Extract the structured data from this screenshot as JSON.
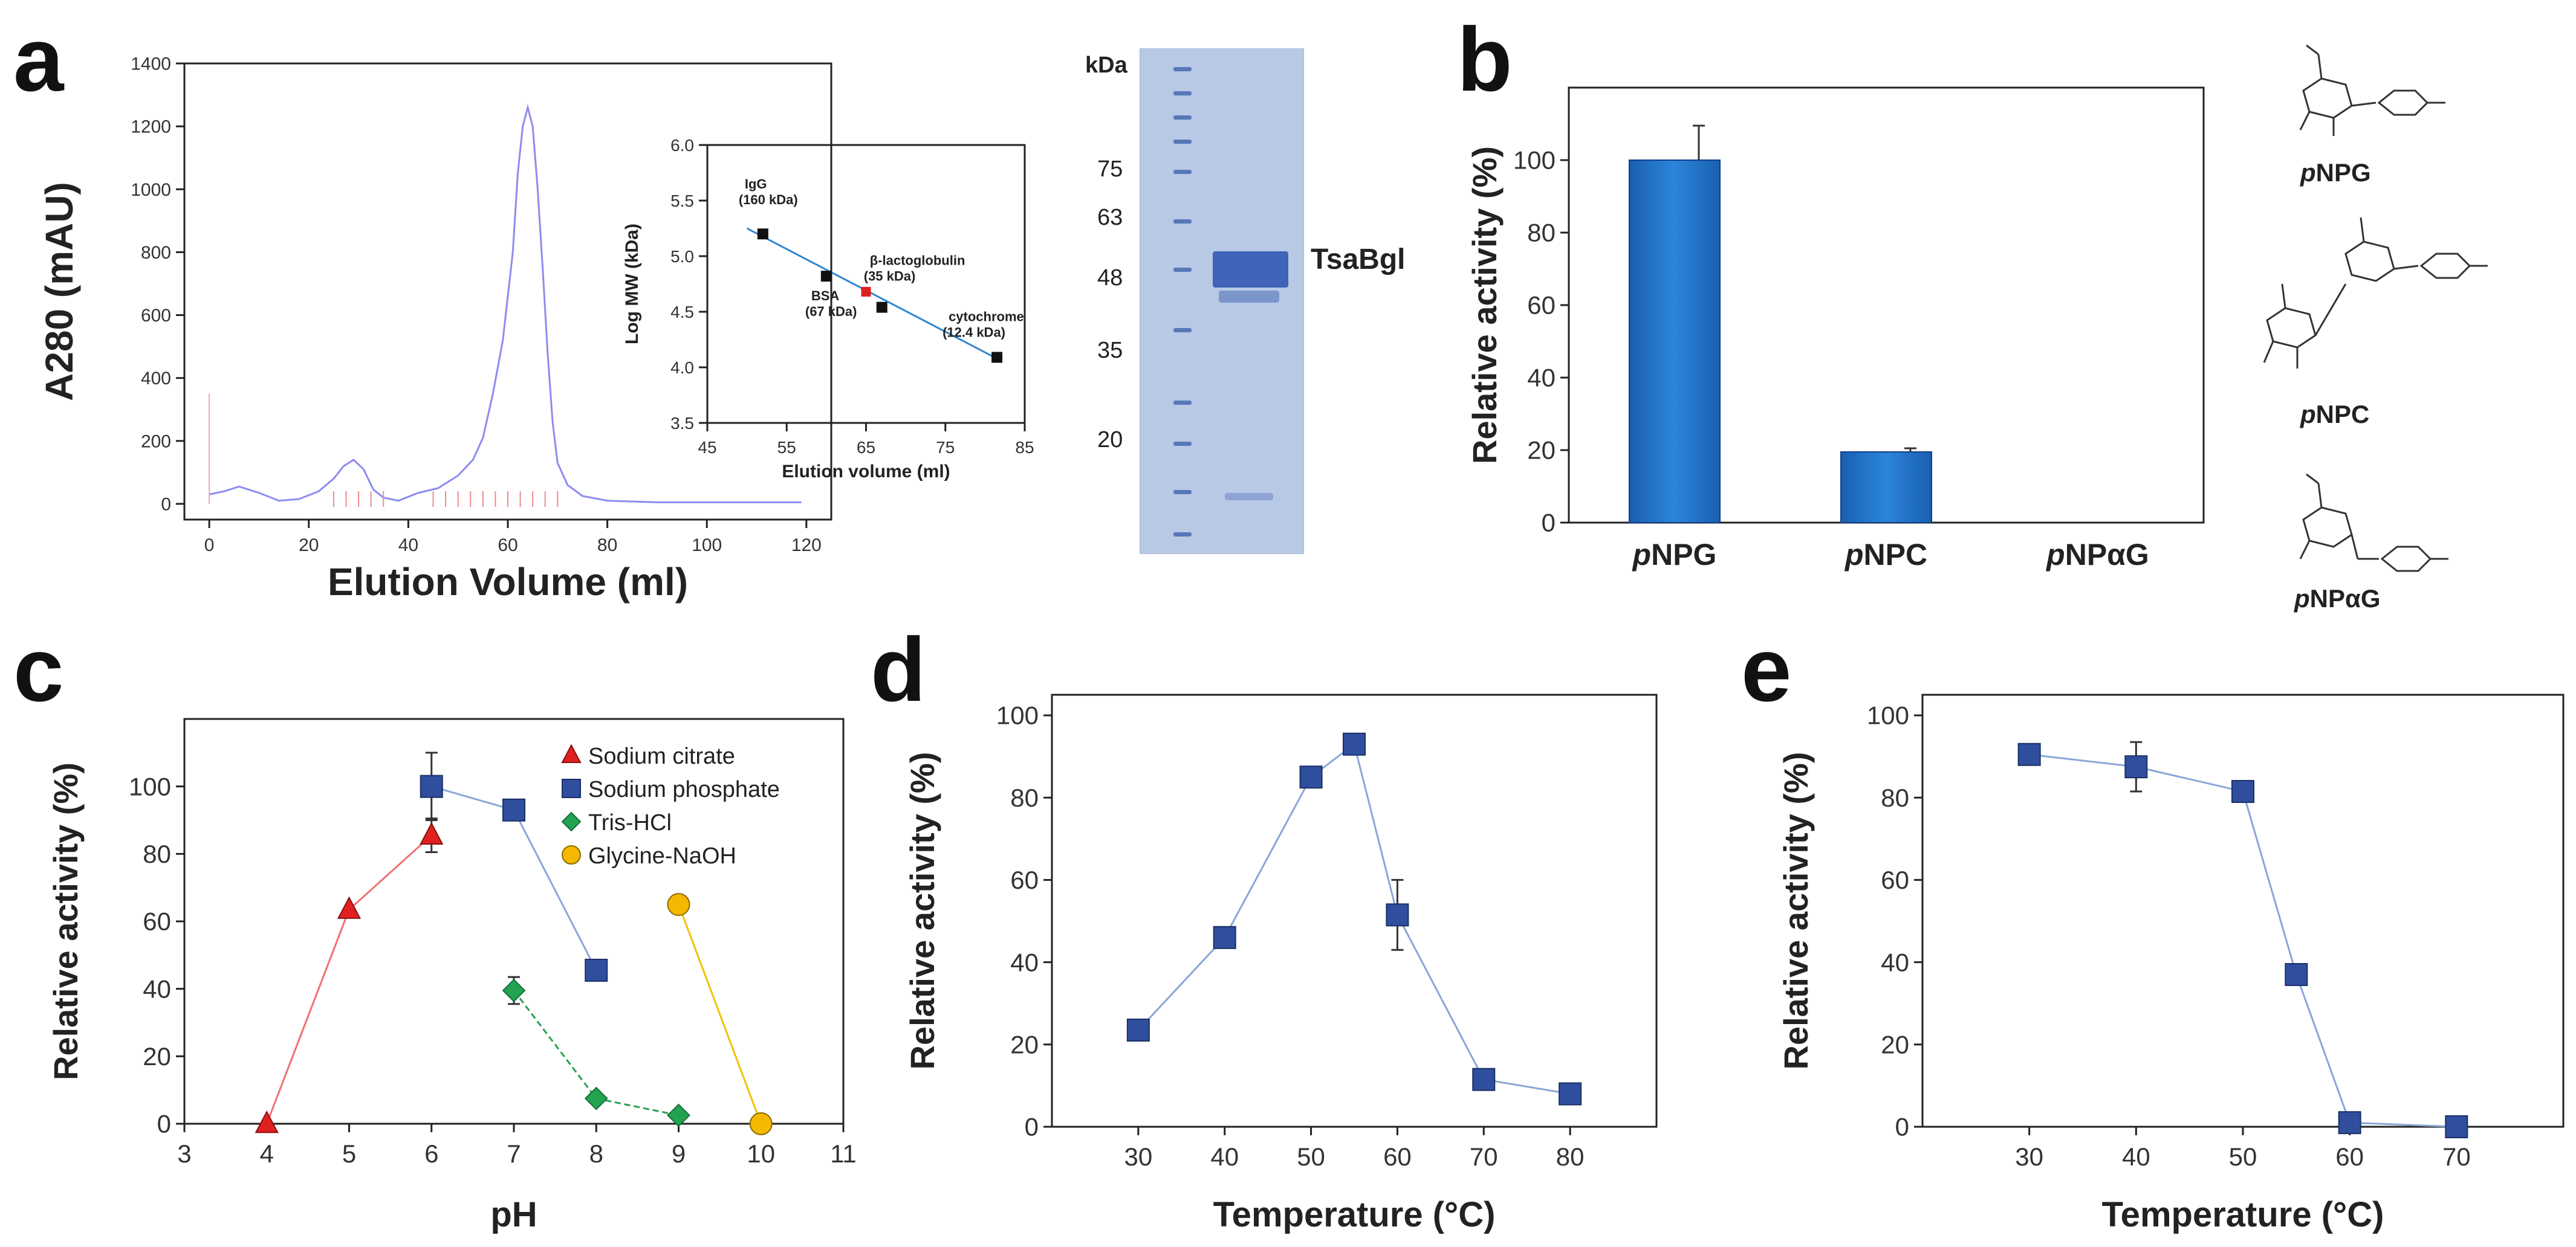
{
  "panel_letters": {
    "a": "a",
    "b": "b",
    "c": "c",
    "d": "d",
    "e": "e"
  },
  "colors": {
    "axis": "#222222",
    "chromatogram": "#8c8cf0",
    "chromatogram_marks": "#f08a8a",
    "bar": "#1f6fc4",
    "bar_edge": "#0f3f8a",
    "series_red": "#e02020",
    "series_blue": "#2f4f9e",
    "series_green": "#23a350",
    "series_orange": "#f5b800",
    "line_blue": "#8aa6d8",
    "inset_line": "#2f86d0",
    "gel_bg": "#b8c9e6",
    "gel_band": "#4f6fb8"
  },
  "gel": {
    "unit_label": "kDa",
    "markers": [
      "75",
      "63",
      "48",
      "35",
      "20"
    ],
    "protein_label": "TsaBgl"
  },
  "structures": [
    {
      "name_prefix": "p",
      "name_rest": "NPG",
      "icon": "glucoside-structure-icon"
    },
    {
      "name_prefix": "p",
      "name_rest": "NPC",
      "icon": "cellobioside-structure-icon"
    },
    {
      "name_prefix": "p",
      "name_rest": "NPαG",
      "icon": "alpha-glucoside-structure-icon"
    }
  ],
  "chart_data": [
    {
      "panel": "a",
      "type": "line",
      "title": "",
      "xlabel": "Elution Volume (ml)",
      "ylabel": "A280 (mAU)",
      "xlim": [
        -5,
        125
      ],
      "ylim": [
        -50,
        1400
      ],
      "xticks": [
        0,
        20,
        40,
        60,
        80,
        100,
        120
      ],
      "yticks": [
        0,
        200,
        400,
        600,
        800,
        1000,
        1200,
        1400
      ],
      "series": [
        {
          "name": "A280",
          "x": [
            0,
            3,
            6,
            10,
            14,
            18,
            22,
            25,
            27,
            29,
            31,
            33,
            35,
            38,
            42,
            46,
            50,
            53,
            55,
            57,
            59,
            61,
            62,
            63,
            64,
            65,
            66,
            67,
            68,
            69,
            70,
            72,
            75,
            80,
            90,
            100,
            110,
            119
          ],
          "y": [
            30,
            40,
            55,
            35,
            10,
            15,
            40,
            80,
            120,
            140,
            110,
            45,
            20,
            10,
            35,
            50,
            90,
            140,
            210,
            350,
            520,
            800,
            1050,
            1200,
            1260,
            1200,
            1000,
            750,
            480,
            260,
            130,
            60,
            25,
            10,
            5,
            5,
            5,
            5
          ]
        }
      ]
    },
    {
      "panel": "a-inset",
      "type": "scatter",
      "title": "",
      "xlabel": "Elution volume (ml)",
      "ylabel": "Log MW (kDa)",
      "xlim": [
        45,
        85
      ],
      "ylim": [
        3.5,
        6.0
      ],
      "xticks": [
        45,
        55,
        65,
        75,
        85
      ],
      "yticks": [
        3.5,
        4.0,
        4.5,
        5.0,
        5.5,
        6.0
      ],
      "standards": [
        {
          "label": "IgG",
          "sublabel": "(160 kDa)",
          "x": 52,
          "y": 5.2
        },
        {
          "label": "BSA",
          "sublabel": "(67 kDa)",
          "x": 60,
          "y": 4.82
        },
        {
          "label": "β-lactoglobulin",
          "sublabel": "(35 kDa)",
          "x": 67,
          "y": 4.54
        },
        {
          "label": "cytochrome",
          "sublabel": "(12.4 kDa)",
          "x": 81.5,
          "y": 4.09
        }
      ],
      "sample": {
        "x": 65,
        "y": 4.68
      },
      "fit": {
        "x": [
          50,
          82
        ],
        "y": [
          5.25,
          4.06
        ]
      }
    },
    {
      "panel": "b",
      "type": "bar",
      "title": "",
      "xlabel": "",
      "ylabel": "Relative activity (%)",
      "ylim": [
        0,
        120
      ],
      "yticks": [
        0,
        20,
        40,
        60,
        80,
        100
      ],
      "categories": [
        {
          "prefix": "p",
          "rest": "NPG"
        },
        {
          "prefix": "p",
          "rest": "NPC"
        },
        {
          "prefix": "p",
          "rest": "NPαG"
        }
      ],
      "values": [
        100,
        19.5,
        0
      ],
      "errors": [
        9.5,
        1.0,
        0
      ]
    },
    {
      "panel": "c",
      "type": "line",
      "title": "",
      "xlabel": "pH",
      "ylabel": "Relative activity (%)",
      "xlim": [
        3,
        11
      ],
      "ylim": [
        0,
        120
      ],
      "xticks": [
        3,
        4,
        5,
        6,
        7,
        8,
        9,
        10,
        11
      ],
      "yticks": [
        0,
        20,
        40,
        60,
        80,
        100
      ],
      "legend_position": "top-right",
      "series": [
        {
          "name": "Sodium citrate",
          "marker": "triangle",
          "color": "#e02020",
          "line": "#f07070",
          "x": [
            4,
            5,
            6
          ],
          "y": [
            0,
            63.5,
            85.5
          ],
          "err": [
            0,
            0,
            5
          ]
        },
        {
          "name": "Sodium phosphate",
          "marker": "square",
          "color": "#2f4f9e",
          "line": "#8aa6d8",
          "x": [
            6,
            7,
            8
          ],
          "y": [
            100,
            93,
            45.5
          ],
          "err": [
            10,
            0,
            0
          ]
        },
        {
          "name": "Tris-HCl",
          "marker": "diamond",
          "color": "#23a350",
          "line": "#23a350",
          "x": [
            7,
            8,
            9
          ],
          "y": [
            39.5,
            7.5,
            2.5
          ],
          "err": [
            4,
            0,
            0
          ]
        },
        {
          "name": "Glycine-NaOH",
          "marker": "circle",
          "color": "#f5b800",
          "line": "#f5c000",
          "x": [
            9,
            10
          ],
          "y": [
            65,
            0
          ],
          "err": [
            0,
            0
          ]
        }
      ]
    },
    {
      "panel": "d",
      "type": "line",
      "title": "",
      "xlabel": "Temperature (°C)",
      "ylabel": "Relative activity (%)",
      "xlim": [
        20,
        90
      ],
      "ylim": [
        0,
        105
      ],
      "xticks": [
        30,
        40,
        50,
        60,
        70,
        80
      ],
      "yticks": [
        0,
        20,
        40,
        60,
        80,
        100
      ],
      "series": [
        {
          "name": "Activity",
          "marker": "square",
          "color": "#2f4f9e",
          "line": "#8aa6d8",
          "x": [
            30,
            40,
            50,
            55,
            60,
            70,
            80
          ],
          "y": [
            23.5,
            46,
            85,
            93,
            51.5,
            11.5,
            8
          ],
          "err": [
            0,
            0,
            0,
            2,
            8.5,
            0,
            0
          ]
        }
      ]
    },
    {
      "panel": "e",
      "type": "line",
      "title": "",
      "xlabel": "Temperature (°C)",
      "ylabel": "Relative activity (%)",
      "xlim": [
        20,
        80
      ],
      "ylim": [
        0,
        105
      ],
      "xticks": [
        30,
        40,
        50,
        60,
        70
      ],
      "yticks": [
        0,
        20,
        40,
        60,
        80,
        100
      ],
      "series": [
        {
          "name": "Activity",
          "marker": "square",
          "color": "#2f4f9e",
          "line": "#8aa6d8",
          "x": [
            30,
            40,
            50,
            55,
            60,
            70
          ],
          "y": [
            90.5,
            87.5,
            81.5,
            37,
            1,
            0
          ],
          "err": [
            0,
            6,
            0,
            0,
            0,
            0
          ]
        }
      ]
    }
  ]
}
